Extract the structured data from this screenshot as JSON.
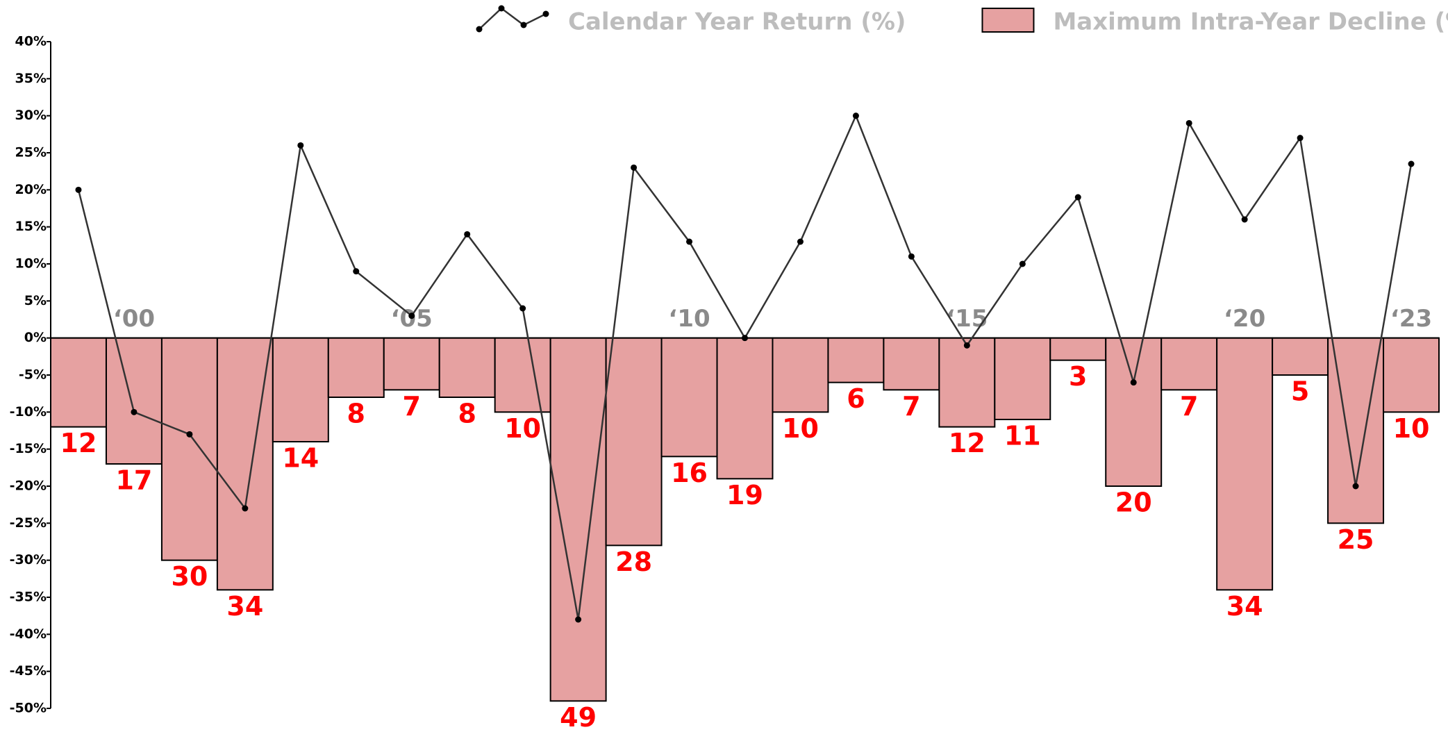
{
  "chart_data": {
    "type": "bar",
    "categories": [
      null,
      "‘00",
      null,
      null,
      null,
      null,
      "‘05",
      null,
      null,
      null,
      null,
      "‘10",
      null,
      null,
      null,
      null,
      "‘15",
      null,
      null,
      null,
      null,
      "‘20",
      null,
      null,
      "‘23"
    ],
    "series": [
      {
        "name": "Calendar Year Return (%)",
        "type": "line",
        "color": "#333333",
        "values": [
          20,
          -10,
          -13,
          -23,
          26,
          9,
          3,
          14,
          4,
          -38,
          23,
          13,
          0,
          13,
          30,
          11,
          -1,
          10,
          19,
          -6,
          29,
          16,
          27,
          -20,
          23.5
        ]
      },
      {
        "name": "Maximum Intra-Year Decline (%)",
        "type": "bar",
        "color": "#e6a1a1",
        "label_color": "#ff0000",
        "values": [
          -12,
          -17,
          -30,
          -34,
          -14,
          -8,
          -7,
          -8,
          -10,
          -49,
          -28,
          -16,
          -19,
          -10,
          -6,
          -7,
          -12,
          -11,
          -3,
          -20,
          -7,
          -34,
          -5,
          -25,
          -10
        ],
        "value_labels": [
          "12",
          "17",
          "30",
          "34",
          "14",
          "8",
          "7",
          "8",
          "10",
          "49",
          "28",
          "16",
          "19",
          "10",
          "6",
          "7",
          "12",
          "11",
          "3",
          "20",
          "7",
          "34",
          "5",
          "25",
          "10"
        ]
      }
    ],
    "ylim": [
      -50,
      40
    ],
    "yticks": [
      {
        "value": -50,
        "label": "-50%"
      },
      {
        "value": -45,
        "label": "-45%"
      },
      {
        "value": -40,
        "label": "-40%"
      },
      {
        "value": -35,
        "label": "-35%"
      },
      {
        "value": -30,
        "label": "-30%"
      },
      {
        "value": -25,
        "label": "-25%"
      },
      {
        "value": -20,
        "label": "-20%"
      },
      {
        "value": -15,
        "label": "-15%"
      },
      {
        "value": -10,
        "label": "-10%"
      },
      {
        "value": -5,
        "label": "-5%"
      },
      {
        "value": 0,
        "label": "0%"
      },
      {
        "value": 5,
        "label": "5%"
      },
      {
        "value": 10,
        "label": "10%"
      },
      {
        "value": 15,
        "label": "15%"
      },
      {
        "value": 20,
        "label": "20%"
      },
      {
        "value": 25,
        "label": "25%"
      },
      {
        "value": 30,
        "label": "30%"
      },
      {
        "value": 35,
        "label": "35%"
      },
      {
        "value": 40,
        "label": "40%"
      }
    ]
  }
}
